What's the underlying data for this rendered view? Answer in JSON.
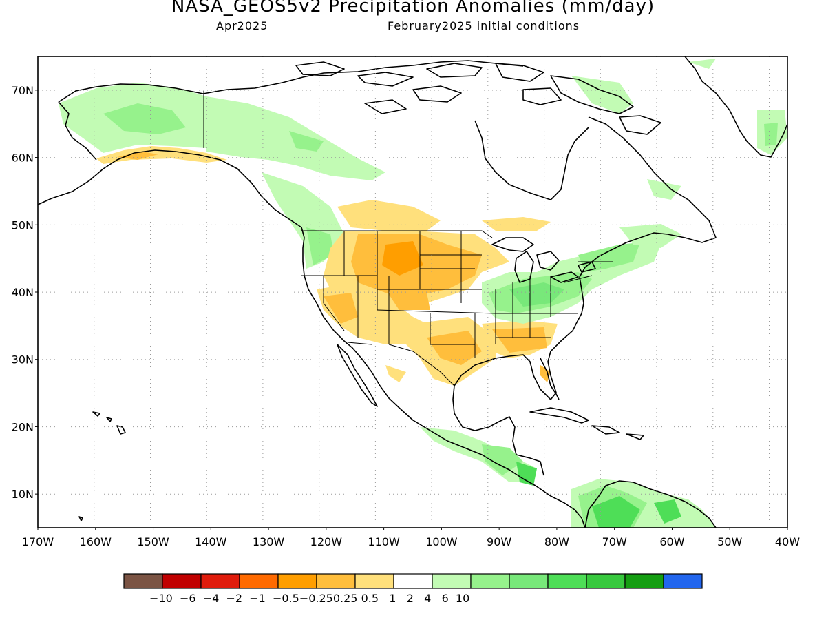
{
  "title": "NASA_GEOS5v2 Precipitation Anomalies (mm/day)",
  "subtitle_left": "Apr2025",
  "subtitle_right": "February2025 initial conditions",
  "map": {
    "lon_range": [
      -170,
      -40
    ],
    "lat_range": [
      5,
      75
    ],
    "x_ticks": [
      "170W",
      "160W",
      "150W",
      "140W",
      "130W",
      "120W",
      "110W",
      "100W",
      "90W",
      "80W",
      "70W",
      "60W",
      "50W",
      "40W"
    ],
    "y_ticks": [
      "70N",
      "60N",
      "50N",
      "40N",
      "30N",
      "20N",
      "10N"
    ],
    "grid": "dotted"
  },
  "legend": {
    "colors": [
      "#7b5444",
      "#c00000",
      "#e01c0c",
      "#ff6a00",
      "#ff9e00",
      "#ffbe3c",
      "#ffe07c",
      "#ffffff",
      "#c2fbb4",
      "#96f28c",
      "#78e87a",
      "#4ede57",
      "#38c93e",
      "#159e12",
      "#2266ee"
    ],
    "labels": [
      "-10",
      "-6",
      "-4",
      "-2",
      "-1",
      "-0.5",
      "-0.25",
      "0.25",
      "0.5",
      "1",
      "2",
      "4",
      "6",
      "10"
    ],
    "label_text": "−10  −6  −4  −2  −1  −0.5−0.250.25 0.5   1   2   4   6  10"
  }
}
